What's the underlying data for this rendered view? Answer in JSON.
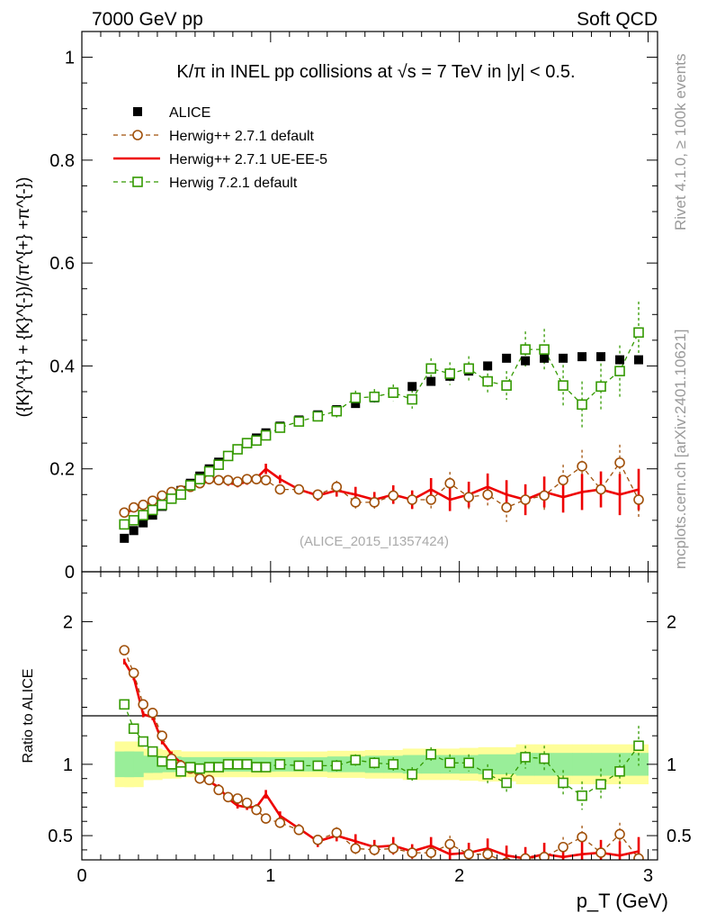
{
  "header": {
    "left": "7000 GeV pp",
    "right": "Soft QCD"
  },
  "side_labels": {
    "rivet": "Rivet 4.1.0, ≥ 100k events",
    "mcplots": "mcplots.cern.ch [arXiv:2401.10621]"
  },
  "watermark": "(ALICE_2015_I1357424)",
  "chart_data": [
    {
      "type": "scatter",
      "title": "K/π in INEL pp collisions at √s = 7 TeV in |y| < 0.5.",
      "ylabel": "({K}^{+} + {K}^{-})/(π^{+} +π^{-})",
      "ylim": [
        0,
        1.05
      ],
      "yticks": [
        0,
        0.2,
        0.4,
        0.6,
        0.8,
        1
      ],
      "ytick_labels": [
        "0",
        "0.2",
        "0.4",
        "0.6",
        "0.8",
        "1"
      ],
      "legend": {
        "position": "top-left",
        "entries": [
          "ALICE",
          "Herwig++ 2.7.1 default",
          "Herwig++ 2.7.1 UE-EE-5",
          "Herwig 7.2.1 default"
        ]
      },
      "x": [
        0.225,
        0.275,
        0.325,
        0.375,
        0.425,
        0.475,
        0.525,
        0.575,
        0.625,
        0.675,
        0.725,
        0.775,
        0.825,
        0.875,
        0.925,
        0.975,
        1.05,
        1.15,
        1.25,
        1.35,
        1.45,
        1.55,
        1.65,
        1.75,
        1.85,
        1.95,
        2.05,
        2.15,
        2.25,
        2.35,
        2.45,
        2.55,
        2.65,
        2.75,
        2.85,
        2.95
      ],
      "series": [
        {
          "name": "ALICE",
          "color": "#000000",
          "marker": "filled-square",
          "y": [
            0.065,
            0.08,
            0.095,
            0.11,
            0.127,
            0.142,
            0.158,
            0.172,
            0.186,
            0.2,
            0.213,
            0.225,
            0.238,
            0.25,
            0.26,
            0.27,
            0.283,
            0.295,
            0.305,
            0.315,
            0.327,
            0.338,
            0.348,
            0.36,
            0.37,
            0.38,
            0.39,
            0.4,
            0.415,
            0.41,
            0.415,
            0.415,
            0.418,
            0.418,
            0.412,
            0.412
          ]
        },
        {
          "name": "Herwig++ 2.7.1 default",
          "color": "#a0500a",
          "marker": "open-circle",
          "line": "dashed",
          "y": [
            0.115,
            0.125,
            0.13,
            0.138,
            0.148,
            0.155,
            0.158,
            0.165,
            0.172,
            0.18,
            0.178,
            0.178,
            0.175,
            0.18,
            0.18,
            0.178,
            0.16,
            0.16,
            0.15,
            0.165,
            0.135,
            0.135,
            0.148,
            0.14,
            0.14,
            0.172,
            0.145,
            0.15,
            0.125,
            0.14,
            0.148,
            0.178,
            0.205,
            0.16,
            0.212,
            0.14
          ],
          "err": [
            0.003,
            0.003,
            0.003,
            0.004,
            0.004,
            0.004,
            0.004,
            0.004,
            0.004,
            0.005,
            0.005,
            0.005,
            0.006,
            0.006,
            0.007,
            0.008,
            0.008,
            0.009,
            0.01,
            0.012,
            0.012,
            0.014,
            0.016,
            0.018,
            0.02,
            0.022,
            0.024,
            0.026,
            0.028,
            0.028,
            0.03,
            0.03,
            0.032,
            0.032,
            0.035,
            0.035
          ]
        },
        {
          "name": "Herwig++ 2.7.1 UE-EE-5",
          "color": "#ee0000",
          "marker": "none",
          "line": "solid",
          "y": [
            0.112,
            0.122,
            0.128,
            0.137,
            0.147,
            0.152,
            0.16,
            0.17,
            0.172,
            0.175,
            0.178,
            0.172,
            0.17,
            0.175,
            0.182,
            0.2,
            0.18,
            0.16,
            0.148,
            0.158,
            0.15,
            0.14,
            0.15,
            0.14,
            0.16,
            0.14,
            0.15,
            0.165,
            0.15,
            0.14,
            0.155,
            0.145,
            0.155,
            0.16,
            0.15,
            0.16
          ],
          "err": [
            0.003,
            0.003,
            0.003,
            0.004,
            0.004,
            0.004,
            0.004,
            0.004,
            0.005,
            0.005,
            0.005,
            0.005,
            0.006,
            0.006,
            0.007,
            0.01,
            0.008,
            0.009,
            0.01,
            0.012,
            0.015,
            0.015,
            0.018,
            0.018,
            0.022,
            0.022,
            0.025,
            0.026,
            0.028,
            0.03,
            0.03,
            0.03,
            0.035,
            0.035,
            0.04,
            0.04
          ]
        },
        {
          "name": "Herwig 7.2.1 default",
          "color": "#339900",
          "marker": "open-square",
          "line": "dashed",
          "y": [
            0.092,
            0.1,
            0.11,
            0.12,
            0.13,
            0.142,
            0.15,
            0.168,
            0.18,
            0.195,
            0.208,
            0.225,
            0.238,
            0.25,
            0.255,
            0.265,
            0.28,
            0.292,
            0.302,
            0.312,
            0.338,
            0.34,
            0.348,
            0.335,
            0.395,
            0.385,
            0.395,
            0.37,
            0.362,
            0.432,
            0.432,
            0.362,
            0.325,
            0.36,
            0.39,
            0.465
          ],
          "err": [
            0.003,
            0.003,
            0.003,
            0.004,
            0.004,
            0.004,
            0.004,
            0.004,
            0.005,
            0.005,
            0.005,
            0.005,
            0.006,
            0.006,
            0.007,
            0.008,
            0.008,
            0.009,
            0.01,
            0.012,
            0.014,
            0.015,
            0.016,
            0.018,
            0.02,
            0.022,
            0.024,
            0.026,
            0.028,
            0.035,
            0.04,
            0.04,
            0.045,
            0.045,
            0.05,
            0.06
          ]
        }
      ]
    },
    {
      "type": "scatter",
      "xlabel": "p_T (GeV)",
      "ylabel": "Ratio to ALICE",
      "xlim": [
        0,
        3.05
      ],
      "xticks": [
        0,
        1,
        2,
        3
      ],
      "xtick_labels": [
        "0",
        "1",
        "2",
        "3"
      ],
      "ylim": [
        0.33,
        2.35
      ],
      "yticks": [
        0.5,
        1,
        2
      ],
      "ytick_labels": [
        "0.5",
        "1",
        "2"
      ],
      "band_1sigma": [
        0.09,
        0.09,
        0.06,
        0.06,
        0.055,
        0.055,
        0.05,
        0.05,
        0.05,
        0.05,
        0.05,
        0.05,
        0.05,
        0.05,
        0.05,
        0.05,
        0.05,
        0.05,
        0.05,
        0.055,
        0.055,
        0.06,
        0.06,
        0.065,
        0.065,
        0.065,
        0.065,
        0.07,
        0.07,
        0.08,
        0.08,
        0.08,
        0.08,
        0.08,
        0.08,
        0.08
      ],
      "band_2sigma": [
        0.16,
        0.16,
        0.11,
        0.11,
        0.1,
        0.1,
        0.09,
        0.09,
        0.09,
        0.09,
        0.09,
        0.09,
        0.09,
        0.09,
        0.09,
        0.09,
        0.09,
        0.09,
        0.09,
        0.095,
        0.095,
        0.1,
        0.1,
        0.11,
        0.11,
        0.11,
        0.115,
        0.12,
        0.12,
        0.14,
        0.14,
        0.14,
        0.14,
        0.14,
        0.14,
        0.14
      ],
      "series": [
        {
          "name": "Herwig++ 2.7.1 default",
          "color": "#a0500a",
          "y": [
            1.8,
            1.64,
            1.42,
            1.36,
            1.2,
            1.04,
            0.99,
            0.97,
            0.9,
            0.89,
            0.82,
            0.77,
            0.76,
            0.73,
            0.68,
            0.62,
            0.59,
            0.54,
            0.47,
            0.52,
            0.41,
            0.4,
            0.41,
            0.38,
            0.38,
            0.44,
            0.37,
            0.37,
            0.31,
            0.34,
            0.35,
            0.42,
            0.49,
            0.38,
            0.51,
            0.34
          ],
          "err": [
            0.02,
            0.02,
            0.02,
            0.02,
            0.02,
            0.02,
            0.02,
            0.02,
            0.02,
            0.02,
            0.02,
            0.02,
            0.02,
            0.02,
            0.02,
            0.02,
            0.02,
            0.03,
            0.03,
            0.04,
            0.04,
            0.04,
            0.05,
            0.05,
            0.05,
            0.06,
            0.06,
            0.07,
            0.07,
            0.07,
            0.07,
            0.07,
            0.08,
            0.08,
            0.08,
            0.08
          ]
        },
        {
          "name": "Herwig++ 2.7.1 UE-EE-5",
          "color": "#ee0000",
          "y": [
            1.72,
            1.61,
            1.35,
            1.33,
            1.16,
            1.07,
            1.01,
            0.99,
            0.92,
            0.88,
            0.84,
            0.76,
            0.71,
            0.7,
            0.7,
            0.79,
            0.64,
            0.55,
            0.46,
            0.5,
            0.46,
            0.42,
            0.43,
            0.39,
            0.43,
            0.37,
            0.38,
            0.41,
            0.36,
            0.34,
            0.37,
            0.35,
            0.37,
            0.38,
            0.36,
            0.39
          ],
          "err": [
            0.02,
            0.02,
            0.02,
            0.02,
            0.02,
            0.02,
            0.02,
            0.02,
            0.02,
            0.02,
            0.02,
            0.02,
            0.02,
            0.02,
            0.02,
            0.03,
            0.03,
            0.03,
            0.04,
            0.04,
            0.05,
            0.05,
            0.06,
            0.05,
            0.06,
            0.06,
            0.07,
            0.07,
            0.07,
            0.08,
            0.08,
            0.08,
            0.09,
            0.09,
            0.1,
            0.1
          ]
        },
        {
          "name": "Herwig 7.2.1 default",
          "color": "#339900",
          "y": [
            1.42,
            1.25,
            1.16,
            1.09,
            1.02,
            1.0,
            0.95,
            0.98,
            0.97,
            0.98,
            0.98,
            1.0,
            1.0,
            1.0,
            0.98,
            0.98,
            1.0,
            0.99,
            0.99,
            0.99,
            1.03,
            1.01,
            1.0,
            0.93,
            1.07,
            1.01,
            1.01,
            0.93,
            0.87,
            1.05,
            1.04,
            0.87,
            0.78,
            0.86,
            0.95,
            1.13
          ],
          "err": [
            0.02,
            0.02,
            0.02,
            0.02,
            0.02,
            0.02,
            0.02,
            0.02,
            0.02,
            0.02,
            0.02,
            0.02,
            0.02,
            0.02,
            0.02,
            0.02,
            0.02,
            0.03,
            0.03,
            0.04,
            0.04,
            0.04,
            0.05,
            0.05,
            0.05,
            0.06,
            0.06,
            0.07,
            0.07,
            0.08,
            0.09,
            0.09,
            0.1,
            0.11,
            0.12,
            0.14
          ]
        }
      ]
    }
  ]
}
